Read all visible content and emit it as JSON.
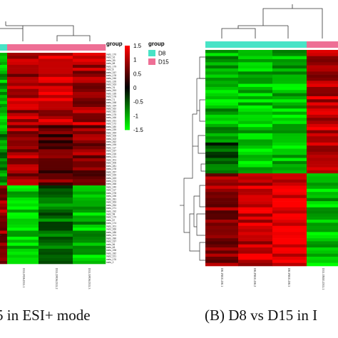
{
  "panel_a": {
    "caption": "5 in ESI+ mode",
    "group_label": "group",
    "column_labels": [
      "D15.POS.D15.1",
      "D15.2POS.D15.2",
      "D15.3POS.D15.3"
    ],
    "row_labels": [
      "mets_170",
      "mets_16",
      "mets_2B",
      "mets_68",
      "mets_179",
      "mets_8",
      "mets_157",
      "mets_178",
      "mets_246",
      "mets_126",
      "mets_163",
      "mets_76",
      "mets_253",
      "mets_135",
      "mets_178",
      "mets_71",
      "mets_158",
      "mets_154",
      "mets_162",
      "mets_181",
      "mets_175",
      "mets_166",
      "mets_231",
      "mets_172",
      "mets_180",
      "mets_239",
      "mets_254",
      "mets_106",
      "mets_102",
      "mets_262",
      "mets_195",
      "mets_117",
      "mets_237",
      "mets_216",
      "mets_131",
      "mets_201",
      "mets_206",
      "mets_281",
      "mets_278",
      "mets_257",
      "mets_229",
      "mets_163",
      "mets_274",
      "mets_268",
      "mets_240",
      "mets_117",
      "mets_278",
      "mets_196",
      "mets_281",
      "mets_263",
      "mets_254",
      "mets_271",
      "mets_192",
      "mets_98",
      "mets_170",
      "mets_57",
      "mets_174",
      "mets_201",
      "mets_266",
      "mets_186",
      "mets_101",
      "mets_286",
      "mets_237",
      "mets_56",
      "mets_48",
      "mets_198",
      "mets_182",
      "mets_221",
      "mets_176",
      "mets_2"
    ]
  },
  "panel_b": {
    "caption": "(B) D8 vs D15 in I",
    "column_labels": [
      "D8.1NEG.D8.1",
      "D8.2NEG.D8.2",
      "D8.3NEG.D8.3",
      "D15.1NEG.D15.1"
    ]
  },
  "legend": {
    "scale_title": "group",
    "ticks": [
      "1.5",
      "1",
      "0.5",
      "0",
      "-0.5",
      "-1",
      "-1.5"
    ],
    "group_title": "group",
    "groups": [
      {
        "name": "D8",
        "color": "#48e3c6"
      },
      {
        "name": "D15",
        "color": "#ee6f95"
      }
    ]
  },
  "chart_data": [
    {
      "type": "heatmap",
      "scale": {
        "min": -1.5,
        "max": 1.5,
        "colors": [
          "#00ff00",
          "#000000",
          "#ff0000"
        ]
      },
      "columns": [
        "D8",
        "D15.POS.D15.1",
        "D15.2POS.D15.2",
        "D15.3POS.D15.3"
      ],
      "column_groups": [
        "D8",
        "D15",
        "D15",
        "D15"
      ],
      "row_blocks": [
        {
          "rows": 24,
          "values": [
            -1.1,
            1.0,
            1.1,
            1.0
          ]
        },
        {
          "rows": 20,
          "values": [
            -0.9,
            0.9,
            0.6,
            0.8
          ]
        },
        {
          "rows": 26,
          "values": [
            0.9,
            -1.3,
            -0.7,
            -1.1
          ]
        }
      ]
    },
    {
      "type": "heatmap",
      "scale": {
        "min": -1.5,
        "max": 1.5,
        "colors": [
          "#00ff00",
          "#000000",
          "#ff0000"
        ]
      },
      "columns": [
        "D8.1NEG.D8.1",
        "D8.2NEG.D8.2",
        "D8.3NEG.D8.3",
        "D15.1NEG.D15.1"
      ],
      "column_groups": [
        "D8",
        "D8",
        "D8",
        "D15"
      ],
      "row_blocks": [
        {
          "rows": 30,
          "values": [
            -1.1,
            -1.2,
            -1.1,
            1.1
          ]
        },
        {
          "rows": 10,
          "values": [
            -0.5,
            -1.3,
            -1.2,
            1.2
          ]
        },
        {
          "rows": 30,
          "values": [
            0.9,
            1.2,
            1.3,
            -1.2
          ]
        }
      ]
    }
  ]
}
